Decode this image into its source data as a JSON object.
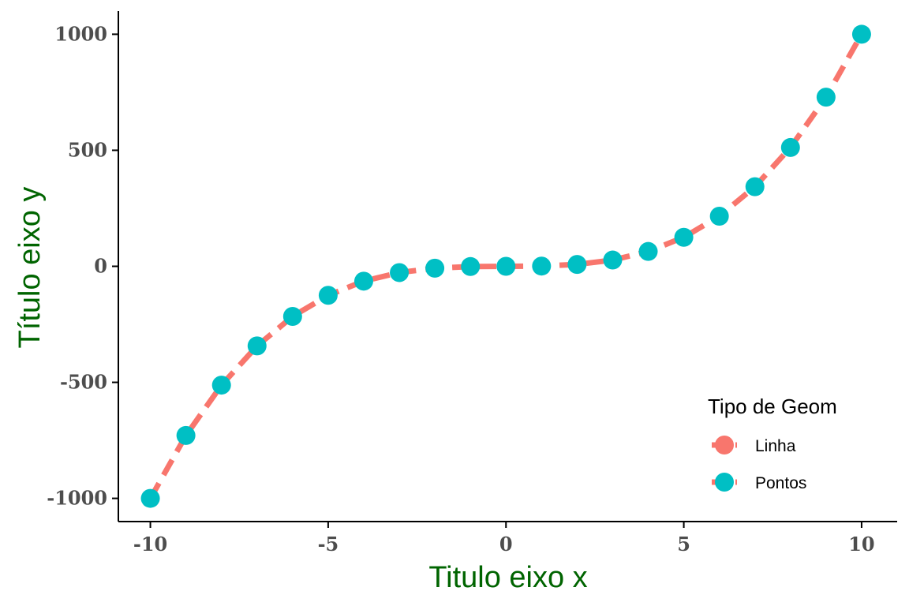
{
  "chart_data": {
    "type": "line",
    "title": "",
    "xlabel": "Titulo eixo x",
    "ylabel": "Título eixo y",
    "xlim": [
      -10.9,
      11
    ],
    "ylim": [
      -1100,
      1100
    ],
    "xticks": [
      -10,
      -5,
      0,
      5,
      10
    ],
    "yticks": [
      -1000,
      -500,
      0,
      500,
      1000
    ],
    "xtick_labels": [
      "-10",
      "-5",
      "0",
      "5",
      "10"
    ],
    "ytick_labels": [
      "-1000",
      "-500",
      "0",
      "500",
      "1000"
    ],
    "grid": false,
    "legend_position": "bottom-right",
    "x": [
      -10,
      -9,
      -8,
      -7,
      -6,
      -5,
      -4,
      -3,
      -2,
      -1,
      0,
      1,
      2,
      3,
      4,
      5,
      6,
      7,
      8,
      9,
      10
    ],
    "series": [
      {
        "name": "Linha",
        "geom": "line",
        "line_style": "dashed",
        "color": "#F8766D",
        "values": [
          -1000,
          -729,
          -512,
          -343,
          -216,
          -125,
          -64,
          -27,
          -8,
          -1,
          0,
          1,
          8,
          27,
          64,
          125,
          216,
          343,
          512,
          729,
          1000
        ]
      },
      {
        "name": "Pontos",
        "geom": "point",
        "color": "#00BFC4",
        "values": [
          -1000,
          -729,
          -512,
          -343,
          -216,
          -125,
          -64,
          -27,
          -8,
          -1,
          0,
          1,
          8,
          27,
          64,
          125,
          216,
          343,
          512,
          729,
          1000
        ]
      }
    ],
    "legend": {
      "title": "Tipo de Geom",
      "entries": [
        "Linha",
        "Pontos"
      ]
    },
    "colors": {
      "axis": "#000000",
      "tick_text": "#4d4d4d",
      "axis_title": "#006400"
    }
  }
}
